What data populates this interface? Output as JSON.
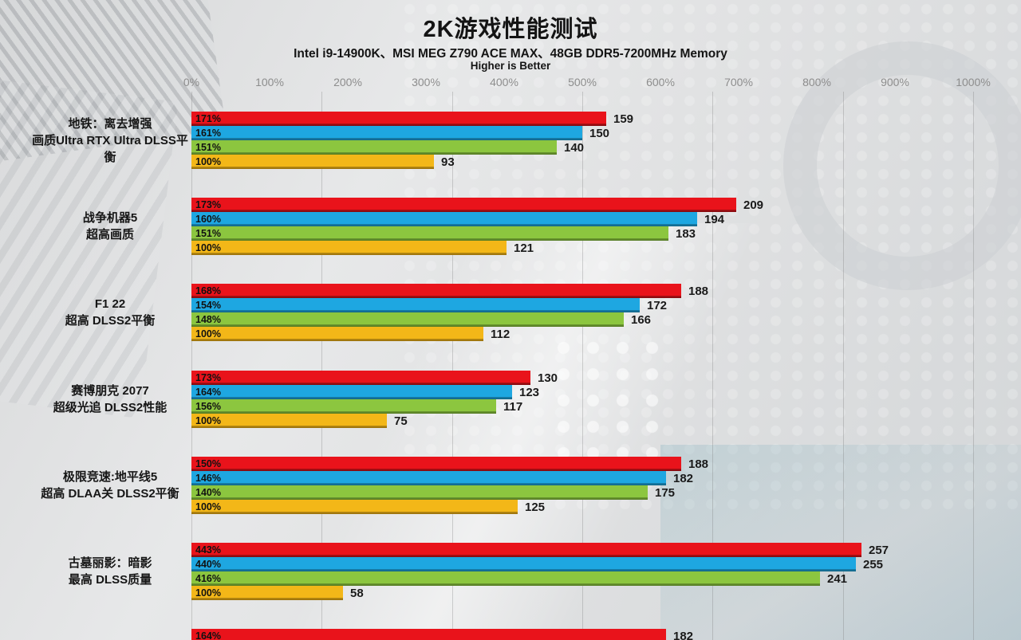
{
  "header": {
    "title": "2K游戏性能测试",
    "subtitle": "Intel i9-14900K、MSI MEG Z790 ACE MAX、48GB DDR5-7200MHz Memory",
    "note": "Higher is Better"
  },
  "chart_data": {
    "type": "bar",
    "orientation": "horizontal",
    "title": "2K游戏性能测试",
    "subtitle": "Intel i9-14900K、MSI MEG Z790 ACE MAX、48GB DDR5-7200MHz Memory",
    "note": "Higher is Better",
    "x_axis": {
      "tick_labels": [
        "0%",
        "100%",
        "200%",
        "300%",
        "400%",
        "500%",
        "600%",
        "700%",
        "800%",
        "900%",
        "1000%"
      ],
      "min_pct": 0,
      "max_pct": 1000,
      "gridlines_pct": [
        0,
        166.7,
        333.3,
        500,
        666.7,
        833.3,
        1000
      ],
      "grid": true
    },
    "legend": "none-visible",
    "series_colors": [
      {
        "name": "series-red",
        "hex": "#e9131b",
        "hex_dark": "#a30e13"
      },
      {
        "name": "series-blue",
        "hex": "#1ea7e1",
        "hex_dark": "#177fab"
      },
      {
        "name": "series-green",
        "hex": "#8cc63f",
        "hex_dark": "#6b9c2d"
      },
      {
        "name": "series-yellow",
        "hex": "#f3b718",
        "hex_dark": "#c28e0e"
      }
    ],
    "value_note": "percent label printed inside bar, fps value printed after bar",
    "groups": [
      {
        "game": "地铁：离去增强",
        "settings": "画质Ultra RTX Ultra DLSS平衡",
        "bars": [
          {
            "series": "series-red",
            "percent_label": "171%",
            "value": 159
          },
          {
            "series": "series-blue",
            "percent_label": "161%",
            "value": 150
          },
          {
            "series": "series-green",
            "percent_label": "151%",
            "value": 140
          },
          {
            "series": "series-yellow",
            "percent_label": "100%",
            "value": 93
          }
        ]
      },
      {
        "game": "战争机器5",
        "settings": "超高画质",
        "bars": [
          {
            "series": "series-red",
            "percent_label": "173%",
            "value": 209
          },
          {
            "series": "series-blue",
            "percent_label": "160%",
            "value": 194
          },
          {
            "series": "series-green",
            "percent_label": "151%",
            "value": 183
          },
          {
            "series": "series-yellow",
            "percent_label": "100%",
            "value": 121
          }
        ]
      },
      {
        "game": "F1 22",
        "settings": "超高 DLSS2平衡",
        "bars": [
          {
            "series": "series-red",
            "percent_label": "168%",
            "value": 188
          },
          {
            "series": "series-blue",
            "percent_label": "154%",
            "value": 172
          },
          {
            "series": "series-green",
            "percent_label": "148%",
            "value": 166
          },
          {
            "series": "series-yellow",
            "percent_label": "100%",
            "value": 112
          }
        ]
      },
      {
        "game": "赛博朋克 2077",
        "settings": "超级光追 DLSS2性能",
        "bars": [
          {
            "series": "series-red",
            "percent_label": "173%",
            "value": 130
          },
          {
            "series": "series-blue",
            "percent_label": "164%",
            "value": 123
          },
          {
            "series": "series-green",
            "percent_label": "156%",
            "value": 117
          },
          {
            "series": "series-yellow",
            "percent_label": "100%",
            "value": 75
          }
        ]
      },
      {
        "game": "极限竞速:地平线5",
        "settings": "超高 DLAA关 DLSS2平衡",
        "bars": [
          {
            "series": "series-red",
            "percent_label": "150%",
            "value": 188
          },
          {
            "series": "series-blue",
            "percent_label": "146%",
            "value": 182
          },
          {
            "series": "series-green",
            "percent_label": "140%",
            "value": 175
          },
          {
            "series": "series-yellow",
            "percent_label": "100%",
            "value": 125
          }
        ]
      },
      {
        "game": "古墓丽影：暗影",
        "settings": "最高 DLSS质量",
        "bars": [
          {
            "series": "series-red",
            "percent_label": "443%",
            "value": 257
          },
          {
            "series": "series-blue",
            "percent_label": "440%",
            "value": 255
          },
          {
            "series": "series-green",
            "percent_label": "416%",
            "value": 241
          },
          {
            "series": "series-yellow",
            "percent_label": "100%",
            "value": 58
          }
        ]
      },
      {
        "game": "",
        "settings": "",
        "bars": [
          {
            "series": "series-red",
            "percent_label": "164%",
            "value": 182
          }
        ]
      }
    ]
  }
}
